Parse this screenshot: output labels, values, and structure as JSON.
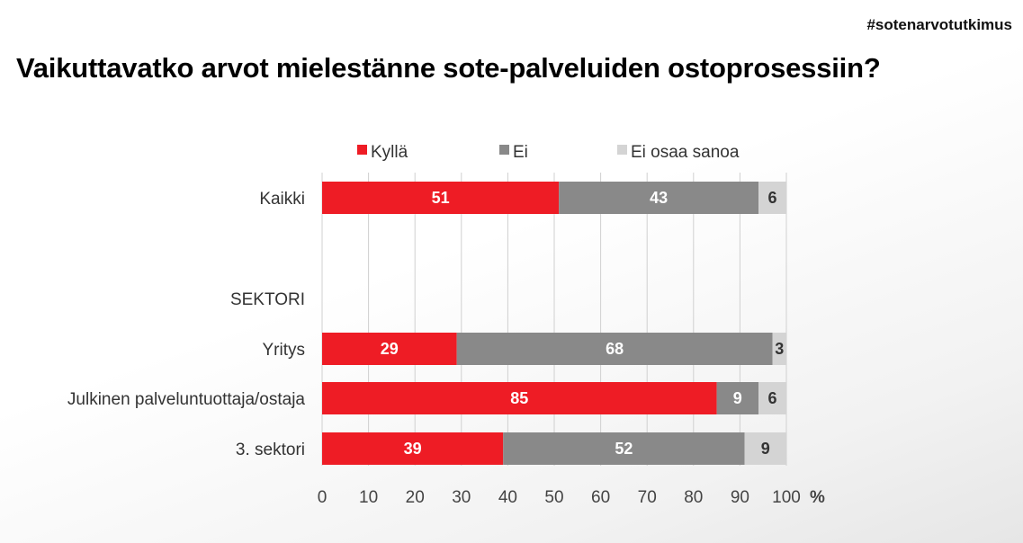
{
  "hashtag": "#sotenarvotutkimus",
  "title": "Vaikuttavatko arvot mielestänne sote-palveluiden ostoprosessiin?",
  "chart_data": {
    "type": "bar",
    "orientation": "horizontal",
    "stacked": true,
    "categories": [
      "Kaikki",
      "SEKTORI",
      "Yritys",
      "Julkinen palveluntuottaja/ostaja",
      "3. sektori"
    ],
    "series": [
      {
        "name": "Kyllä",
        "color": "#ee1c25",
        "label_color": "#ffffff",
        "values": [
          51,
          null,
          29,
          85,
          39
        ]
      },
      {
        "name": "Ei",
        "color": "#898989",
        "label_color": "#ffffff",
        "values": [
          43,
          null,
          68,
          9,
          52
        ]
      },
      {
        "name": "Ei osaa sanoa",
        "color": "#d4d4d4",
        "label_color": "#333333",
        "values": [
          6,
          null,
          3,
          6,
          9
        ]
      }
    ],
    "xlim": [
      0,
      100
    ],
    "xticks": [
      "0",
      "10",
      "20",
      "30",
      "40",
      "50",
      "60",
      "70",
      "80",
      "90",
      "100"
    ],
    "x_unit": "%",
    "grid": true,
    "legend_position": "top"
  }
}
